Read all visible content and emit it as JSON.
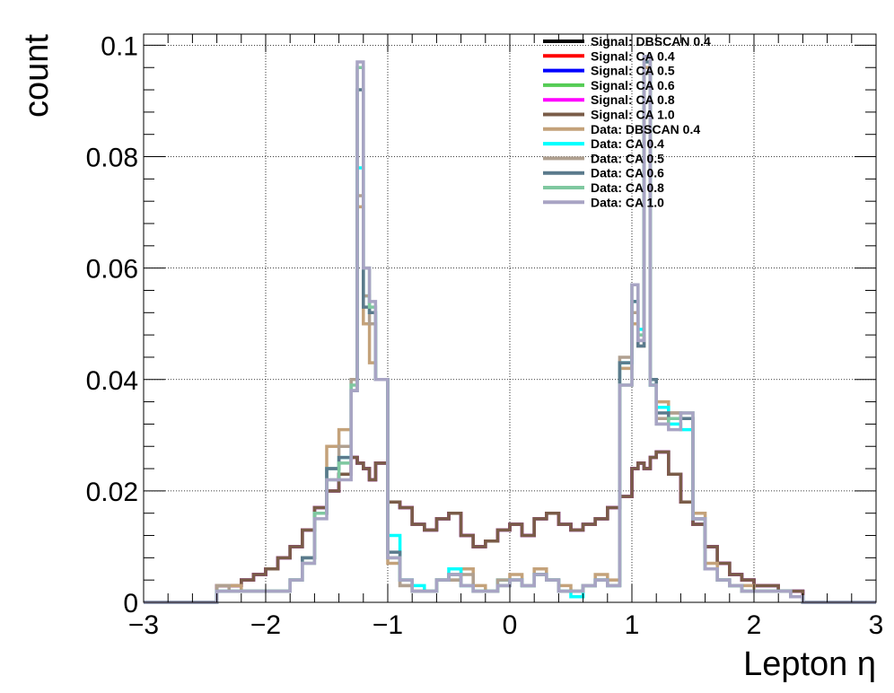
{
  "chart_data": {
    "type": "line",
    "style": "step-histogram",
    "title": "",
    "xlabel": "Lepton η",
    "ylabel": "count",
    "xlim": [
      -3,
      3
    ],
    "ylim": [
      0,
      0.102
    ],
    "x_ticks": [
      -3,
      -2,
      -1,
      0,
      1,
      2,
      3
    ],
    "x_tick_labels": [
      "−3",
      "−2",
      "−1",
      "0",
      "1",
      "2",
      "3"
    ],
    "y_ticks": [
      0,
      0.02,
      0.04,
      0.06,
      0.08,
      0.1
    ],
    "y_tick_labels": [
      "0",
      "0.02",
      "0.04",
      "0.06",
      "0.08",
      "0.1"
    ],
    "grid": true,
    "legend_position": "top-right",
    "bin_edges": [
      -2.4,
      -2.3,
      -2.2,
      -2.1,
      -2.0,
      -1.9,
      -1.8,
      -1.7,
      -1.6,
      -1.5,
      -1.4,
      -1.3,
      -1.25,
      -1.2,
      -1.15,
      -1.1,
      -1.0,
      -0.9,
      -0.8,
      -0.7,
      -0.6,
      -0.5,
      -0.4,
      -0.3,
      -0.2,
      -0.1,
      0.0,
      0.1,
      0.2,
      0.3,
      0.4,
      0.5,
      0.6,
      0.7,
      0.8,
      0.9,
      1.0,
      1.05,
      1.1,
      1.15,
      1.2,
      1.3,
      1.4,
      1.5,
      1.6,
      1.7,
      1.8,
      1.9,
      2.0,
      2.1,
      2.2,
      2.3,
      2.4
    ],
    "series": [
      {
        "name": "Signal: DBSCAN 0.4",
        "color": "#000000",
        "values": [
          0.003,
          0.003,
          0.004,
          0.005,
          0.006,
          0.008,
          0.01,
          0.013,
          0.017,
          0.02,
          0.023,
          0.026,
          0.025,
          0.024,
          0.022,
          0.025,
          0.018,
          0.017,
          0.014,
          0.013,
          0.015,
          0.016,
          0.012,
          0.01,
          0.011,
          0.013,
          0.014,
          0.012,
          0.015,
          0.016,
          0.014,
          0.013,
          0.014,
          0.015,
          0.017,
          0.019,
          0.024,
          0.025,
          0.024,
          0.026,
          0.027,
          0.023,
          0.018,
          0.014,
          0.01,
          0.007,
          0.005,
          0.004,
          0.003,
          0.003,
          0.002,
          0.002
        ]
      },
      {
        "name": "Signal: CA 0.4",
        "color": "#ff0000",
        "values": [
          0.003,
          0.003,
          0.004,
          0.005,
          0.006,
          0.008,
          0.01,
          0.013,
          0.017,
          0.02,
          0.023,
          0.026,
          0.025,
          0.024,
          0.022,
          0.025,
          0.018,
          0.017,
          0.014,
          0.013,
          0.015,
          0.016,
          0.012,
          0.01,
          0.011,
          0.013,
          0.014,
          0.012,
          0.015,
          0.016,
          0.014,
          0.013,
          0.014,
          0.015,
          0.017,
          0.019,
          0.024,
          0.025,
          0.024,
          0.026,
          0.027,
          0.023,
          0.018,
          0.014,
          0.01,
          0.007,
          0.005,
          0.004,
          0.003,
          0.003,
          0.002,
          0.002
        ]
      },
      {
        "name": "Signal: CA 0.5",
        "color": "#0000ff",
        "values": [
          0.003,
          0.003,
          0.004,
          0.005,
          0.006,
          0.008,
          0.01,
          0.013,
          0.017,
          0.02,
          0.023,
          0.026,
          0.025,
          0.024,
          0.022,
          0.025,
          0.018,
          0.017,
          0.014,
          0.013,
          0.015,
          0.016,
          0.012,
          0.01,
          0.011,
          0.013,
          0.014,
          0.012,
          0.015,
          0.016,
          0.014,
          0.013,
          0.014,
          0.015,
          0.017,
          0.019,
          0.024,
          0.025,
          0.024,
          0.026,
          0.027,
          0.023,
          0.018,
          0.014,
          0.01,
          0.007,
          0.005,
          0.004,
          0.003,
          0.003,
          0.002,
          0.002
        ]
      },
      {
        "name": "Signal: CA 0.6",
        "color": "#55cc55",
        "values": [
          0.003,
          0.003,
          0.004,
          0.005,
          0.006,
          0.008,
          0.01,
          0.013,
          0.017,
          0.02,
          0.023,
          0.026,
          0.025,
          0.024,
          0.022,
          0.025,
          0.018,
          0.017,
          0.014,
          0.013,
          0.015,
          0.016,
          0.012,
          0.01,
          0.011,
          0.013,
          0.014,
          0.012,
          0.015,
          0.016,
          0.014,
          0.013,
          0.014,
          0.015,
          0.017,
          0.019,
          0.024,
          0.025,
          0.024,
          0.026,
          0.027,
          0.023,
          0.018,
          0.014,
          0.01,
          0.007,
          0.005,
          0.004,
          0.003,
          0.003,
          0.002,
          0.002
        ]
      },
      {
        "name": "Signal: CA 0.8",
        "color": "#ff00ff",
        "values": [
          0.003,
          0.003,
          0.004,
          0.005,
          0.006,
          0.008,
          0.01,
          0.013,
          0.017,
          0.02,
          0.023,
          0.026,
          0.025,
          0.024,
          0.022,
          0.025,
          0.018,
          0.017,
          0.014,
          0.013,
          0.015,
          0.016,
          0.012,
          0.01,
          0.011,
          0.013,
          0.014,
          0.012,
          0.015,
          0.016,
          0.014,
          0.013,
          0.014,
          0.015,
          0.017,
          0.019,
          0.024,
          0.025,
          0.024,
          0.026,
          0.027,
          0.023,
          0.018,
          0.014,
          0.01,
          0.007,
          0.005,
          0.004,
          0.003,
          0.003,
          0.002,
          0.002
        ]
      },
      {
        "name": "Signal: CA 1.0",
        "color": "#7a5c48",
        "values": [
          0.003,
          0.003,
          0.004,
          0.005,
          0.006,
          0.008,
          0.01,
          0.013,
          0.017,
          0.02,
          0.023,
          0.026,
          0.025,
          0.024,
          0.022,
          0.025,
          0.018,
          0.017,
          0.014,
          0.013,
          0.015,
          0.016,
          0.012,
          0.01,
          0.011,
          0.013,
          0.014,
          0.012,
          0.015,
          0.016,
          0.014,
          0.013,
          0.014,
          0.015,
          0.017,
          0.019,
          0.024,
          0.025,
          0.024,
          0.026,
          0.027,
          0.023,
          0.018,
          0.014,
          0.01,
          0.007,
          0.005,
          0.004,
          0.003,
          0.003,
          0.002,
          0.002
        ]
      },
      {
        "name": "Data: DBSCAN 0.4",
        "color": "#c4a27a",
        "values": [
          0.003,
          0.003,
          0.002,
          0.002,
          0.002,
          0.002,
          0.004,
          0.008,
          0.016,
          0.028,
          0.031,
          0.04,
          0.071,
          0.05,
          0.043,
          0.04,
          0.007,
          0.003,
          0.002,
          0.002,
          0.004,
          0.004,
          0.006,
          0.003,
          0.002,
          0.004,
          0.005,
          0.003,
          0.006,
          0.004,
          0.003,
          0.002,
          0.003,
          0.005,
          0.004,
          0.042,
          0.05,
          0.046,
          0.096,
          0.04,
          0.036,
          0.034,
          0.033,
          0.016,
          0.007,
          0.004,
          0.003,
          0.003,
          0.002,
          0.002,
          0.002,
          0.001
        ]
      },
      {
        "name": "Data: CA 0.4",
        "color": "#00ffff",
        "values": [
          0.002,
          0.002,
          0.002,
          0.002,
          0.002,
          0.002,
          0.004,
          0.008,
          0.016,
          0.024,
          0.026,
          0.04,
          0.078,
          0.055,
          0.052,
          0.04,
          0.012,
          0.004,
          0.003,
          0.002,
          0.004,
          0.006,
          0.003,
          0.002,
          0.002,
          0.004,
          0.004,
          0.003,
          0.005,
          0.004,
          0.002,
          0.001,
          0.003,
          0.004,
          0.003,
          0.043,
          0.054,
          0.049,
          0.095,
          0.039,
          0.035,
          0.032,
          0.031,
          0.015,
          0.006,
          0.004,
          0.003,
          0.002,
          0.002,
          0.002,
          0.002,
          0.001
        ]
      },
      {
        "name": "Data: CA 0.5",
        "color": "#b0a090",
        "values": [
          0.003,
          0.002,
          0.002,
          0.002,
          0.002,
          0.002,
          0.004,
          0.008,
          0.016,
          0.024,
          0.028,
          0.04,
          0.073,
          0.055,
          0.05,
          0.04,
          0.008,
          0.003,
          0.002,
          0.002,
          0.004,
          0.004,
          0.005,
          0.002,
          0.002,
          0.004,
          0.004,
          0.003,
          0.005,
          0.004,
          0.002,
          0.002,
          0.003,
          0.004,
          0.003,
          0.044,
          0.052,
          0.047,
          0.095,
          0.04,
          0.033,
          0.034,
          0.033,
          0.015,
          0.006,
          0.004,
          0.003,
          0.002,
          0.002,
          0.002,
          0.002,
          0.001
        ]
      },
      {
        "name": "Data: CA 0.6",
        "color": "#5a7a8c",
        "values": [
          0.002,
          0.002,
          0.002,
          0.002,
          0.002,
          0.002,
          0.004,
          0.008,
          0.016,
          0.024,
          0.026,
          0.038,
          0.092,
          0.053,
          0.052,
          0.04,
          0.009,
          0.004,
          0.002,
          0.002,
          0.004,
          0.005,
          0.003,
          0.002,
          0.002,
          0.003,
          0.004,
          0.003,
          0.005,
          0.004,
          0.002,
          0.002,
          0.003,
          0.004,
          0.003,
          0.043,
          0.054,
          0.046,
          0.097,
          0.04,
          0.034,
          0.033,
          0.033,
          0.015,
          0.006,
          0.004,
          0.003,
          0.002,
          0.002,
          0.002,
          0.002,
          0.001
        ]
      },
      {
        "name": "Data: CA 0.8",
        "color": "#7fc8a0",
        "values": [
          0.002,
          0.002,
          0.002,
          0.002,
          0.002,
          0.002,
          0.004,
          0.007,
          0.016,
          0.022,
          0.025,
          0.039,
          0.096,
          0.06,
          0.053,
          0.04,
          0.008,
          0.004,
          0.002,
          0.002,
          0.004,
          0.005,
          0.003,
          0.002,
          0.002,
          0.003,
          0.004,
          0.003,
          0.005,
          0.004,
          0.002,
          0.002,
          0.003,
          0.004,
          0.003,
          0.039,
          0.057,
          0.048,
          0.098,
          0.039,
          0.032,
          0.033,
          0.034,
          0.015,
          0.006,
          0.004,
          0.003,
          0.002,
          0.002,
          0.002,
          0.002,
          0.001
        ]
      },
      {
        "name": "Data: CA 1.0",
        "color": "#a8a4c4",
        "values": [
          0.002,
          0.002,
          0.002,
          0.002,
          0.002,
          0.002,
          0.004,
          0.007,
          0.015,
          0.022,
          0.022,
          0.038,
          0.097,
          0.06,
          0.054,
          0.04,
          0.008,
          0.004,
          0.002,
          0.002,
          0.004,
          0.005,
          0.003,
          0.002,
          0.002,
          0.003,
          0.004,
          0.003,
          0.005,
          0.004,
          0.002,
          0.002,
          0.003,
          0.004,
          0.003,
          0.039,
          0.057,
          0.047,
          0.098,
          0.039,
          0.032,
          0.031,
          0.034,
          0.015,
          0.006,
          0.004,
          0.003,
          0.002,
          0.002,
          0.002,
          0.002,
          0.001
        ]
      }
    ]
  }
}
